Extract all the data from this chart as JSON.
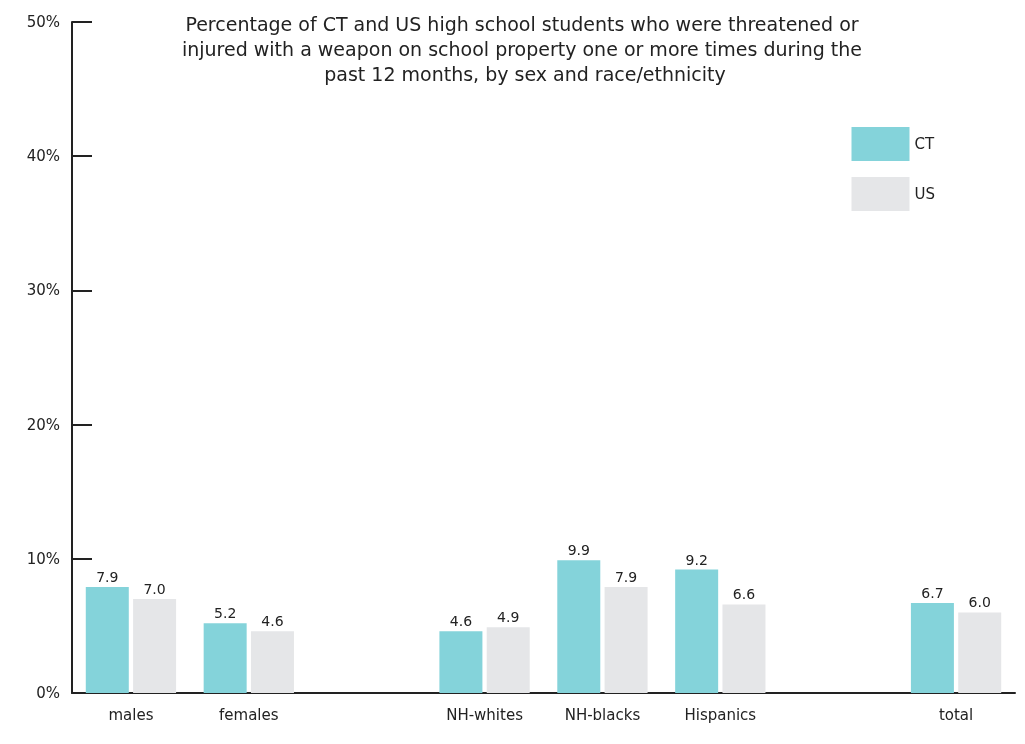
{
  "chart_data": {
    "type": "bar",
    "title": "Percentage of CT and US high school students who were threatened or injured with a weapon on school property one or more times during the past 12 months, by sex and race/ethnicity",
    "categories": [
      "males",
      "females",
      null,
      "NH-whites",
      "NH-blacks",
      "Hispanics",
      null,
      "total"
    ],
    "series": [
      {
        "name": "CT",
        "color": "#84d3da",
        "values": [
          7.9,
          5.2,
          null,
          4.6,
          9.9,
          9.2,
          null,
          6.7
        ],
        "value_labels": [
          "7.9",
          "5.2",
          null,
          "4.6",
          "9.9",
          "9.2",
          null,
          "6.7"
        ]
      },
      {
        "name": "US",
        "color": "#e5e6e8",
        "values": [
          7.0,
          4.6,
          null,
          4.9,
          7.9,
          6.6,
          null,
          6.0
        ],
        "value_labels": [
          "7.0",
          "4.6",
          null,
          "4.9",
          "7.9",
          "6.6",
          null,
          "6.0"
        ]
      }
    ],
    "ylim": [
      0,
      50
    ],
    "yticks": [
      {
        "value": 0,
        "label": "0%"
      },
      {
        "value": 10,
        "label": "10%"
      },
      {
        "value": 20,
        "label": "20%"
      },
      {
        "value": 30,
        "label": "30%"
      },
      {
        "value": 40,
        "label": "40%"
      },
      {
        "value": 50,
        "label": "50%"
      }
    ],
    "grid": false,
    "legend": "top right"
  }
}
